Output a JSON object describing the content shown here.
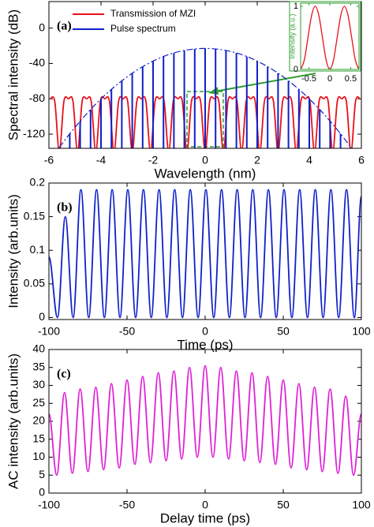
{
  "chart_data": [
    {
      "type": "line",
      "interpolation": "spline",
      "annotation": "(a)",
      "xlabel": "Wavelength (nm)",
      "ylabel": "Spectral intensity (dB)",
      "xlim": [
        -6,
        6
      ],
      "ylim": [
        -136,
        30
      ],
      "xticks": [
        -6,
        -4,
        -2,
        0,
        2,
        4,
        6
      ],
      "yticks": [
        0,
        -40,
        -80,
        -120
      ],
      "legend": "upper left",
      "series": [
        {
          "name": "Transmission of MZI",
          "color": "#e8101a",
          "type": "line",
          "x": [
            -5.95,
            -5.775,
            -5.6,
            -5.425,
            -5.25,
            -5.075,
            -4.9,
            -4.725,
            -4.55,
            -4.375,
            -4.2,
            -4.025,
            -3.85,
            -3.675,
            -3.5,
            -3.325,
            -3.15,
            -2.975,
            -2.8,
            -2.625,
            -2.45,
            -2.275,
            -2.1,
            -1.925,
            -1.75,
            -1.575,
            -1.4,
            -1.225,
            -1.05,
            -0.875,
            -0.7,
            -0.525,
            -0.35,
            -0.175,
            0,
            0.175,
            0.35,
            0.525,
            0.7,
            0.875,
            1.05,
            1.225,
            1.4,
            1.575,
            1.75,
            1.925,
            2.1,
            2.275,
            2.45,
            2.625,
            2.8,
            2.975,
            3.15,
            3.325,
            3.5,
            3.675,
            3.85,
            4.025,
            4.2,
            4.375,
            4.55,
            4.725,
            4.9,
            5.075,
            5.25,
            5.425,
            5.6,
            5.775,
            5.95
          ],
          "values": [
            -80,
            -83,
            -140,
            -83,
            -80,
            -83,
            -140,
            -83,
            -80,
            -83,
            -140,
            -83,
            -80,
            -83,
            -140,
            -83,
            -80,
            -83,
            -140,
            -83,
            -80,
            -83,
            -140,
            -83,
            -80,
            -83,
            -140,
            -83,
            -80,
            -83,
            -140,
            -83,
            -80,
            -83,
            -140,
            -83,
            -80,
            -83,
            -140,
            -83,
            -80,
            -83,
            -140,
            -83,
            -80,
            -83,
            -140,
            -83,
            -80,
            -83,
            -140,
            -83,
            -80,
            -83,
            -140,
            -83,
            -80,
            -83,
            -140,
            -83,
            -80,
            -83,
            -140,
            -83,
            -80,
            -83,
            -140,
            -83,
            -80
          ]
        },
        {
          "name": "Pulse spectrum",
          "color": "#1020c8",
          "type": "stem",
          "envelope": true,
          "x": [
            -5.6,
            -5.2,
            -4.8,
            -4.4,
            -4,
            -3.6,
            -3.2,
            -2.8,
            -2.4,
            -2,
            -1.6,
            -1.2,
            -0.8,
            -0.4,
            0,
            0.4,
            0.8,
            1.2,
            1.6,
            2,
            2.4,
            2.8,
            3.2,
            3.6,
            4,
            4.4,
            4.8,
            5.2,
            5.6
          ],
          "values": [
            -135,
            -119.5,
            -105.3,
            -92.1,
            -80.1,
            -69.3,
            -59.6,
            -51,
            -43.6,
            -37.3,
            -32.1,
            -28.1,
            -25.3,
            -23.6,
            -23,
            -23.6,
            -25.3,
            -28.1,
            -32.1,
            -37.3,
            -43.6,
            -51,
            -59.6,
            -69.3,
            -80.1,
            -92.1,
            -105.3,
            -119.5,
            -135
          ]
        }
      ]
    },
    {
      "type": "line",
      "interpolation": "cosine",
      "annotation": "(b)",
      "xlabel": "Time (ps)",
      "ylabel": "Intensity (arb.units)",
      "color": "#1020c8",
      "xlim": [
        -100,
        100
      ],
      "ylim": [
        -0.003,
        0.2
      ],
      "xticks": [
        -100,
        -50,
        0,
        50,
        100
      ],
      "yticks": [
        0,
        0.05,
        0.1,
        0.15,
        0.2
      ],
      "x": [
        -100,
        -94.5,
        -89.5,
        -84.5,
        -79.5,
        -74.5,
        -69.5,
        -64.5,
        -59.5,
        -54.5,
        -49.5,
        -44.5,
        -39.5,
        -34.5,
        -29.5,
        -24.5,
        -19.5,
        -14.5,
        -9.5,
        -4.5,
        0.5,
        5.5,
        10.5,
        15.5,
        20.5,
        25.5,
        30.5,
        35.5,
        40.5,
        45.5,
        50.5,
        55.5,
        60.5,
        65.5,
        70.5,
        75.5,
        80.5,
        85.5,
        90.5,
        95.5,
        100
      ],
      "values": [
        0.09,
        0,
        0.15,
        0,
        0.19,
        0,
        0.19,
        0,
        0.19,
        0,
        0.19,
        0,
        0.19,
        0,
        0.19,
        0,
        0.19,
        0,
        0.19,
        0,
        0.19,
        0,
        0.19,
        0,
        0.19,
        0,
        0.19,
        0,
        0.19,
        0,
        0.19,
        0,
        0.19,
        0,
        0.19,
        0,
        0.19,
        0,
        0.19,
        0,
        0.18
      ]
    },
    {
      "type": "line",
      "interpolation": "cosine",
      "annotation": "(c)",
      "xlabel": "Delay time (ps)",
      "ylabel": "AC intensity (arb.units)",
      "color": "#e020d8",
      "xlim": [
        -100,
        100
      ],
      "ylim": [
        0,
        40
      ],
      "xticks": [
        -100,
        -50,
        0,
        50,
        100
      ],
      "yticks": [
        0,
        5,
        10,
        15,
        20,
        25,
        30,
        35,
        40
      ],
      "x": [
        -100,
        -95,
        -90,
        -85,
        -80,
        -75,
        -70,
        -65,
        -60,
        -55,
        -50,
        -45,
        -40,
        -35,
        -30,
        -25,
        -20,
        -15,
        -10,
        -5,
        0,
        5,
        10,
        15,
        20,
        25,
        30,
        35,
        40,
        45,
        50,
        55,
        60,
        65,
        70,
        75,
        80,
        85,
        90,
        95,
        100
      ],
      "values": [
        22,
        5,
        28,
        5.5,
        29,
        6,
        29.5,
        6.5,
        30.5,
        7,
        31.5,
        8,
        32.5,
        8.5,
        33.5,
        9,
        34,
        9.5,
        35,
        10,
        35.5,
        10,
        35,
        9.5,
        34,
        9,
        33.5,
        8.5,
        32.5,
        8,
        31.5,
        7,
        30.5,
        6.5,
        29.5,
        6,
        29,
        5.5,
        27,
        5,
        22
      ]
    },
    {
      "type": "line",
      "interpolation": "spline",
      "inset": true,
      "ylabel": "Intensity (a.u.)",
      "color": "#e8101a",
      "axis_color": "#2e9e2e",
      "xlim": [
        -0.7,
        0.7
      ],
      "ylim": [
        0,
        1.05
      ],
      "xticks": [
        -0.5,
        0,
        0.5
      ],
      "yticks": [
        0,
        1
      ],
      "x": [
        -0.7,
        -0.6125,
        -0.525,
        -0.4375,
        -0.35,
        -0.2625,
        -0.175,
        -0.0875,
        0,
        0.0875,
        0.175,
        0.2625,
        0.35,
        0.4375,
        0.525,
        0.6125,
        0.7
      ],
      "values": [
        0,
        0.146,
        0.5,
        0.854,
        1,
        0.854,
        0.5,
        0.146,
        0,
        0.146,
        0.5,
        0.854,
        1,
        0.854,
        0.5,
        0.146,
        0
      ]
    }
  ]
}
